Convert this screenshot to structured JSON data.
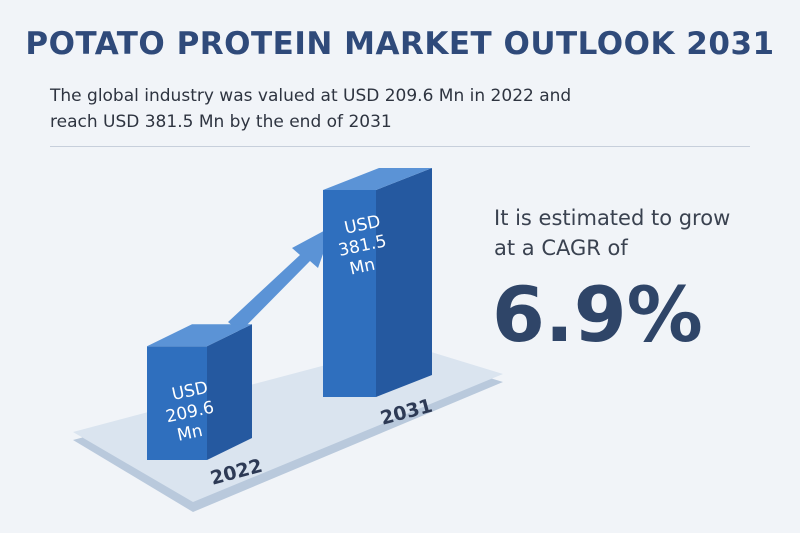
{
  "title": "POTATO PROTEIN MARKET OUTLOOK 2031",
  "subtitle": {
    "line1": "The global industry was valued at USD 209.6 Mn in 2022 and",
    "line2": "reach USD 381.5 Mn by the end of 2031"
  },
  "cagr": {
    "line1": "It is estimated to grow",
    "line2": "at a CAGR of",
    "value": "6.9%"
  },
  "chart_data": {
    "type": "bar",
    "categories": [
      "2022",
      "2031"
    ],
    "values": [
      209.6,
      381.5
    ],
    "unit": "USD Mn",
    "data_labels": [
      [
        "USD",
        "209.6",
        "Mn"
      ],
      [
        "USD",
        "381.5",
        "Mn"
      ]
    ],
    "title": "",
    "xlabel": "",
    "ylabel": "",
    "colors": {
      "bar_front": "#2f6fbe",
      "bar_side": "#2559a0",
      "bar_top": "#5b93d6",
      "arrow": "#5b93d6",
      "platform": "#d5e0ec"
    }
  }
}
